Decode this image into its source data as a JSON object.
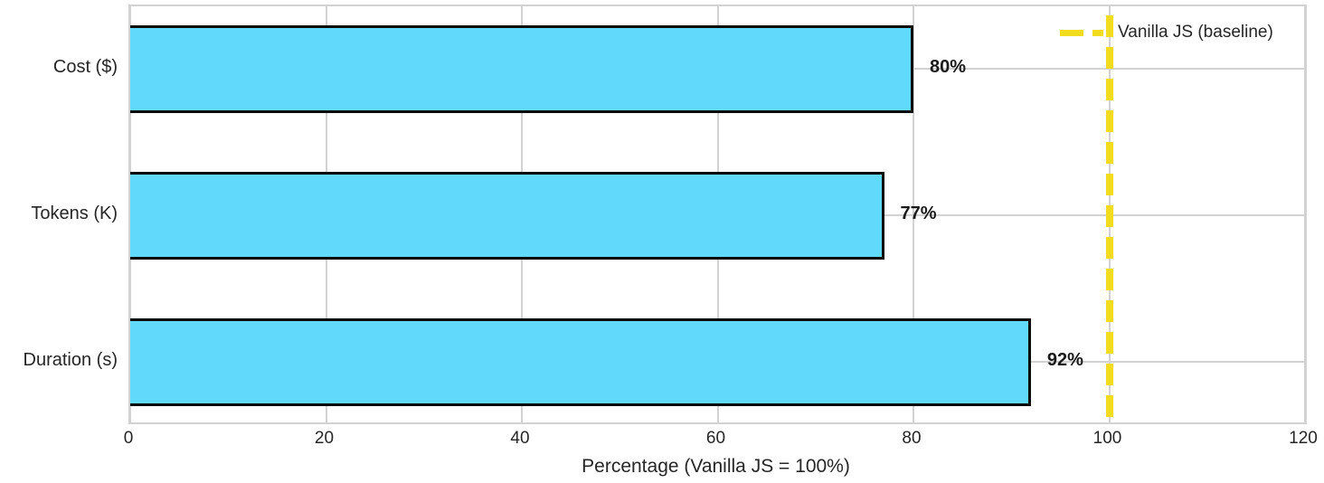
{
  "chart_data": {
    "type": "bar",
    "orientation": "horizontal",
    "title": "",
    "categories": [
      "Cost ($)",
      "Tokens (K)",
      "Duration (s)"
    ],
    "values": [
      80,
      77,
      92
    ],
    "value_labels": [
      "80%",
      "77%",
      "92%"
    ],
    "xlabel": "Percentage (Vanilla JS = 100%)",
    "ylabel": "",
    "xlim": [
      0,
      120
    ],
    "xticks": [
      0,
      20,
      40,
      60,
      80,
      100,
      120
    ],
    "grid": true,
    "legend_position": "top-right",
    "baseline": {
      "value": 100,
      "label": "Vanilla JS (baseline)",
      "style": "dashed"
    }
  },
  "colors": {
    "bar_fill": "#61d9fa",
    "bar_edge": "#0a0a0a",
    "baseline_yellow": "#f2dc1e",
    "gridline": "#d2d2d2",
    "text": "#262626"
  }
}
